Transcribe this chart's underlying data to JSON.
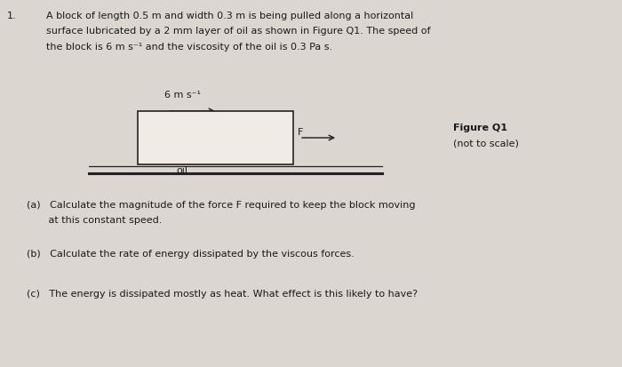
{
  "background_color": "#dbd7d0",
  "fig_width": 7.0,
  "fig_height": 4.14,
  "dpi": 100,
  "question_number": "1.",
  "intro_line1": "A block of length 0.5 m and width 0.3 m is being pulled along a horizontal",
  "intro_line2": "surface lubricated by a 2 mm layer of oil as shown in Figure Q1. The speed of",
  "intro_line3": "the block is 6 m s⁻¹ and the viscosity of the oil is 0.3 Pa s.",
  "speed_label": "6 m s⁻¹",
  "figure_label": "Figure Q1",
  "figure_sublabel": "(not to scale)",
  "oil_label": "oil",
  "force_label": "F",
  "part_a_1": "(a)   Calculate the magnitude of the force F required to keep the block moving",
  "part_a_2": "       at this constant speed.",
  "part_b": "(b)   Calculate the rate of energy dissipated by the viscous forces.",
  "part_c": "(c)   The energy is dissipated mostly as heat. What effect is this likely to have?",
  "text_color": "#1a1a1a",
  "block_facecolor": "#f0ece5",
  "block_edgecolor": "#222222",
  "line_color": "#222222",
  "fs_intro": 8.0,
  "fs_diagram": 8.0,
  "fs_parts": 8.0
}
